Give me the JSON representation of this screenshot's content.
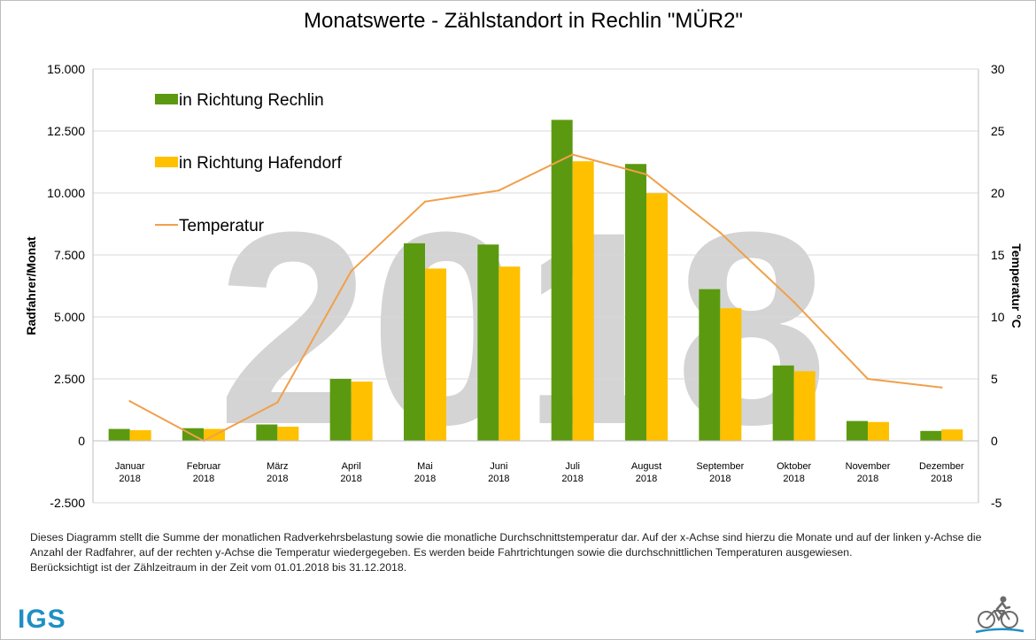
{
  "chart_data": {
    "type": "bar",
    "title": "Monatswerte - Zählstandort in Rechlin \"MÜR2\"",
    "watermark": "2018",
    "ylabel": "Radfahrer/Monat",
    "y2label": "Temperatur °C",
    "ylim": [
      -2500,
      15000
    ],
    "y2lim": [
      -5,
      30
    ],
    "yticks": [
      "-2.500",
      "0",
      "2.500",
      "5.000",
      "7.500",
      "10.000",
      "12.500",
      "15.000"
    ],
    "y2ticks": [
      "-5",
      "0",
      "5",
      "10",
      "15",
      "20",
      "25",
      "30"
    ],
    "categories": [
      [
        "Januar",
        "2018"
      ],
      [
        "Februar",
        "2018"
      ],
      [
        "März",
        "2018"
      ],
      [
        "April",
        "2018"
      ],
      [
        "Mai",
        "2018"
      ],
      [
        "Juni",
        "2018"
      ],
      [
        "Juli",
        "2018"
      ],
      [
        "August",
        "2018"
      ],
      [
        "September",
        "2018"
      ],
      [
        "Oktober",
        "2018"
      ],
      [
        "November",
        "2018"
      ],
      [
        "Dezember",
        "2018"
      ]
    ],
    "series": [
      {
        "name": "in Richtung Rechlin",
        "kind": "bar",
        "axis": "left",
        "color": "#5b9a10",
        "values": [
          480,
          510,
          660,
          2500,
          7970,
          7920,
          12950,
          11170,
          6120,
          3040,
          800,
          400
        ]
      },
      {
        "name": "in Richtung Hafendorf",
        "kind": "bar",
        "axis": "left",
        "color": "#ffc000",
        "values": [
          430,
          480,
          570,
          2390,
          6950,
          7030,
          11280,
          9990,
          5350,
          2810,
          760,
          460
        ]
      },
      {
        "name": "Temperatur",
        "kind": "line",
        "axis": "right",
        "color": "#f0a04b",
        "values": [
          3.2,
          0.0,
          3.1,
          13.7,
          19.3,
          20.2,
          23.1,
          21.5,
          16.8,
          11.2,
          5.0,
          4.3
        ]
      }
    ],
    "legend": "top-left",
    "grid": true
  },
  "caption": {
    "line1": "Dieses Diagramm stellt die Summe der monatlichen Radverkehrsbelastung sowie die monatliche Durchschnittstemperatur dar. Auf der x-Achse sind hierzu die Monate und auf der linken y-Achse die Anzahl der Radfahrer, auf der rechten y-Achse die Temperatur wiedergegeben.  Es werden beide Fahrtrichtungen sowie die durchschnittlichen Temperaturen ausgewiesen.",
    "line2": "Berücksichtigt ist der Zählzeitraum in der Zeit vom 01.01.2018 bis 31.12.2018."
  },
  "logo": {
    "text": "IGS",
    "color": "#1f8fc5"
  },
  "icons": {
    "bottom_right": "bicycle-icon"
  },
  "colors": {
    "grid": "#d9d9d9",
    "axis_text": "#000000",
    "watermark": "#d4d4d4"
  }
}
